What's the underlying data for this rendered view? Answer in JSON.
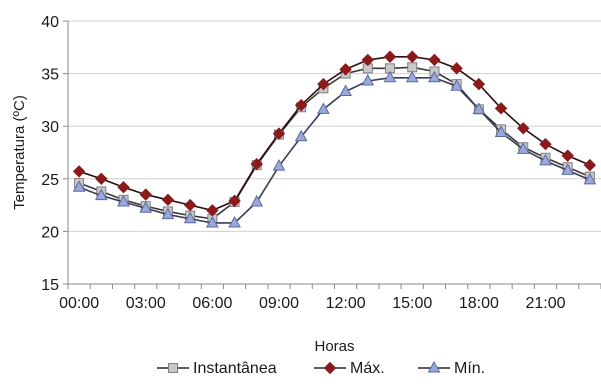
{
  "chart_data": {
    "type": "line",
    "title": "",
    "xlabel": "Horas",
    "ylabel": "Temperatura (ºC)",
    "ylim": [
      15,
      40
    ],
    "yticks": [
      15,
      20,
      25,
      30,
      35,
      40
    ],
    "xtick_labels": [
      "00:00",
      "03:00",
      "06:00",
      "09:00",
      "12:00",
      "15:00",
      "18:00",
      "21:00"
    ],
    "x": [
      "00:00",
      "01:00",
      "02:00",
      "03:00",
      "04:00",
      "05:00",
      "06:00",
      "07:00",
      "08:00",
      "09:00",
      "10:00",
      "11:00",
      "12:00",
      "13:00",
      "14:00",
      "15:00",
      "16:00",
      "17:00",
      "18:00",
      "19:00",
      "20:00",
      "21:00",
      "22:00",
      "23:00"
    ],
    "grid": "horizontal-major",
    "legend_position": "bottom",
    "series": [
      {
        "name": "Instantânea",
        "color": "#7f7f7f",
        "marker": "square",
        "values": [
          24.6,
          23.8,
          23.0,
          22.4,
          21.9,
          21.5,
          21.2,
          22.8,
          26.3,
          29.2,
          31.8,
          33.6,
          35.0,
          35.5,
          35.5,
          35.6,
          35.2,
          34.0,
          31.6,
          29.7,
          28.0,
          27.0,
          26.1,
          25.2
        ]
      },
      {
        "name": "Máx.",
        "color": "#8b1a1a",
        "marker": "diamond",
        "values": [
          25.7,
          25.0,
          24.2,
          23.5,
          23.0,
          22.5,
          22.0,
          22.9,
          26.4,
          29.3,
          32.0,
          34.0,
          35.4,
          36.3,
          36.6,
          36.6,
          36.3,
          35.5,
          34.0,
          31.7,
          29.8,
          28.3,
          27.2,
          26.3
        ]
      },
      {
        "name": "Mín.",
        "color": "#9aa9d8",
        "marker": "triangle",
        "values": [
          24.2,
          23.4,
          22.8,
          22.2,
          21.6,
          21.2,
          20.8,
          20.8,
          22.8,
          26.2,
          29.0,
          31.6,
          33.3,
          34.3,
          34.6,
          34.6,
          34.6,
          33.8,
          31.6,
          29.4,
          27.8,
          26.7,
          25.8,
          24.9
        ]
      }
    ]
  }
}
